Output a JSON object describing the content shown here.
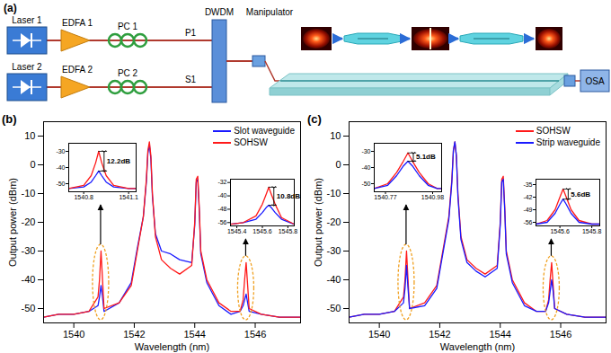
{
  "diagram": {
    "panel_label": "(a)",
    "nodes": [
      {
        "id": "laser1",
        "label": "Laser 1"
      },
      {
        "id": "edfa1",
        "label": "EDFA 1"
      },
      {
        "id": "pc1",
        "label": "PC 1"
      },
      {
        "id": "p1",
        "label": "P1"
      },
      {
        "id": "laser2",
        "label": "Laser 2"
      },
      {
        "id": "edfa2",
        "label": "EDFA 2"
      },
      {
        "id": "pc2",
        "label": "PC 2"
      },
      {
        "id": "s1",
        "label": "S1"
      },
      {
        "id": "dwdm",
        "label": "DWDM"
      },
      {
        "id": "manipulator",
        "label": "Manipulator"
      },
      {
        "id": "osa",
        "label": "OSA"
      }
    ]
  },
  "chart_data": [
    {
      "type": "line",
      "title": "(b)",
      "x_label": "Wavelength (nm)",
      "y_label": "Output power (dBm)",
      "xlim": [
        1539,
        1547.5
      ],
      "ylim": [
        -55,
        15
      ],
      "xticks": [
        1540,
        1542,
        1544,
        1546
      ],
      "yticks": [
        -50,
        -40,
        -30,
        -20,
        -10,
        0,
        10
      ],
      "legend": "top-right",
      "x": [
        1539,
        1539.5,
        1540,
        1540.5,
        1540.8,
        1540.85,
        1540.9,
        1540.95,
        1541,
        1541.5,
        1541.9,
        1542.1,
        1542.3,
        1542.4,
        1542.45,
        1542.5,
        1542.55,
        1542.6,
        1542.7,
        1542.9,
        1543.2,
        1543.5,
        1543.9,
        1544,
        1544.05,
        1544.1,
        1544.15,
        1544.2,
        1544.4,
        1544.8,
        1545.2,
        1545.5,
        1545.6,
        1545.65,
        1545.7,
        1545.75,
        1545.8,
        1546.2,
        1546.8,
        1547.5
      ],
      "series": [
        {
          "name": "Slot waveguide",
          "color": "#1a1aff",
          "values": [
            -53,
            -52,
            -52,
            -51,
            -49,
            -46,
            -42,
            -46,
            -51,
            -48,
            -41,
            -29,
            -18,
            -6,
            4,
            7,
            2,
            -11,
            -24,
            -30,
            -31,
            -33,
            -34,
            -21,
            -6,
            -5,
            -16,
            -31,
            -41,
            -49,
            -52,
            -51,
            -49,
            -47,
            -45,
            -48,
            -51,
            -52,
            -53,
            -53
          ]
        },
        {
          "name": "SOHSW",
          "color": "#ff1a1a",
          "values": [
            -53,
            -52,
            -52,
            -51,
            -46,
            -40,
            -30,
            -40,
            -50,
            -48,
            -42,
            -30,
            -18,
            -5,
            5,
            8,
            3,
            -10,
            -25,
            -33,
            -36,
            -38,
            -35,
            -20,
            -5,
            -4,
            -15,
            -30,
            -40,
            -48,
            -51,
            -51,
            -47,
            -40,
            -34,
            -42,
            -50,
            -52,
            -53,
            -53
          ]
        }
      ],
      "insets": [
        {
          "type": "line",
          "xlim": [
            1540.7,
            1541.15
          ],
          "ylim": [
            -55,
            -25
          ],
          "xticks": [
            1540.8,
            1541.1
          ],
          "yticks": [
            -50,
            -40,
            -30
          ],
          "x": [
            1540.7,
            1540.8,
            1540.85,
            1540.88,
            1540.9,
            1540.92,
            1540.95,
            1541,
            1541.1,
            1541.15
          ],
          "series": [
            {
              "name": "Slot waveguide",
              "color": "#1a1aff",
              "values": [
                -53,
                -52,
                -49,
                -45,
                -42.2,
                -45,
                -49,
                -52,
                -53,
                -53
              ]
            },
            {
              "name": "SOHSW",
              "color": "#ff1a1a",
              "values": [
                -53,
                -51,
                -45,
                -37,
                -30,
                -37,
                -45,
                -51,
                -53,
                -53
              ]
            }
          ],
          "annotation": "12.2dB"
        },
        {
          "type": "line",
          "xlim": [
            1545.35,
            1545.85
          ],
          "ylim": [
            -58,
            -30
          ],
          "xticks": [
            1545.4,
            1545.6,
            1545.8
          ],
          "yticks": [
            -56,
            -48,
            -40,
            -32
          ],
          "x": [
            1545.35,
            1545.45,
            1545.55,
            1545.6,
            1545.63,
            1545.65,
            1545.67,
            1545.7,
            1545.75,
            1545.85
          ],
          "series": [
            {
              "name": "Slot waveguide",
              "color": "#1a1aff",
              "values": [
                -57,
                -56,
                -54,
                -50,
                -47,
                -45.6,
                -47,
                -50,
                -54,
                -57
              ]
            },
            {
              "name": "SOHSW",
              "color": "#ff1a1a",
              "values": [
                -57,
                -56,
                -52,
                -45,
                -39,
                -34.8,
                -39,
                -45,
                -53,
                -57
              ]
            }
          ],
          "annotation": "10.8dB"
        }
      ]
    },
    {
      "type": "line",
      "title": "(c)",
      "x_label": "Wavelength (nm)",
      "y_label": "Output power (dBm)",
      "xlim": [
        1539,
        1547.5
      ],
      "ylim": [
        -55,
        15
      ],
      "xticks": [
        1540,
        1542,
        1544,
        1546
      ],
      "yticks": [
        -50,
        -40,
        -30,
        -20,
        -10,
        0,
        10
      ],
      "legend": "top-right",
      "x": [
        1539,
        1539.5,
        1540,
        1540.5,
        1540.8,
        1540.85,
        1540.9,
        1540.95,
        1541,
        1541.5,
        1541.9,
        1542.1,
        1542.3,
        1542.4,
        1542.45,
        1542.5,
        1542.55,
        1542.6,
        1542.7,
        1542.9,
        1543.2,
        1543.5,
        1543.9,
        1544,
        1544.05,
        1544.1,
        1544.15,
        1544.2,
        1544.4,
        1544.8,
        1545.2,
        1545.5,
        1545.6,
        1545.65,
        1545.7,
        1545.75,
        1545.8,
        1546.2,
        1546.8,
        1547.5
      ],
      "series": [
        {
          "name": "SOHSW",
          "color": "#ff1a1a",
          "values": [
            -53,
            -52,
            -52,
            -51,
            -46,
            -40,
            -30,
            -40,
            -50,
            -48,
            -42,
            -30,
            -18,
            -5,
            5,
            8,
            3,
            -10,
            -25,
            -33,
            -36,
            -38,
            -35,
            -20,
            -5,
            -4,
            -15,
            -30,
            -40,
            -48,
            -51,
            -51,
            -47,
            -40,
            -34,
            -42,
            -50,
            -52,
            -53,
            -53
          ]
        },
        {
          "name": "Strip waveguide",
          "color": "#1a1aff",
          "values": [
            -53,
            -52,
            -52,
            -51,
            -48,
            -43,
            -35,
            -43,
            -50,
            -49,
            -43,
            -31,
            -19,
            -6,
            5,
            8,
            3,
            -11,
            -26,
            -34,
            -37,
            -39,
            -36,
            -21,
            -6,
            -5,
            -16,
            -31,
            -41,
            -49,
            -51,
            -51,
            -48,
            -44,
            -40,
            -44,
            -50,
            -52,
            -53,
            -53
          ]
        }
      ],
      "insets": [
        {
          "type": "line",
          "xlim": [
            1540.72,
            1541.02
          ],
          "ylim": [
            -55,
            -25
          ],
          "xticks": [
            1540.77,
            1540.98
          ],
          "yticks": [
            -50,
            -40,
            -30
          ],
          "x": [
            1540.72,
            1540.78,
            1540.82,
            1540.85,
            1540.87,
            1540.89,
            1540.92,
            1540.96,
            1541,
            1541.02
          ],
          "series": [
            {
              "name": "SOHSW",
              "color": "#ff1a1a",
              "values": [
                -53,
                -50,
                -43,
                -36,
                -31,
                -36,
                -43,
                -50,
                -53,
                -53
              ]
            },
            {
              "name": "Strip waveguide",
              "color": "#1a1aff",
              "values": [
                -53,
                -51,
                -45,
                -39,
                -36.1,
                -39,
                -45,
                -51,
                -53,
                -53
              ]
            }
          ],
          "annotation": "5.1dB"
        },
        {
          "type": "line",
          "xlim": [
            1545.45,
            1545.85
          ],
          "ylim": [
            -58,
            -32
          ],
          "xticks": [
            1545.6,
            1545.8
          ],
          "yticks": [
            -56,
            -49,
            -42,
            -35
          ],
          "x": [
            1545.45,
            1545.52,
            1545.57,
            1545.6,
            1545.62,
            1545.64,
            1545.67,
            1545.72,
            1545.8,
            1545.85
          ],
          "series": [
            {
              "name": "SOHSW",
              "color": "#ff1a1a",
              "values": [
                -57,
                -55,
                -49,
                -42,
                -37.5,
                -42,
                -49,
                -55,
                -57,
                -57
              ]
            },
            {
              "name": "Strip waveguide",
              "color": "#1a1aff",
              "values": [
                -57,
                -56,
                -51,
                -46,
                -43.1,
                -46,
                -51,
                -56,
                -57,
                -57
              ]
            }
          ],
          "annotation": "5.6dB"
        }
      ]
    }
  ]
}
